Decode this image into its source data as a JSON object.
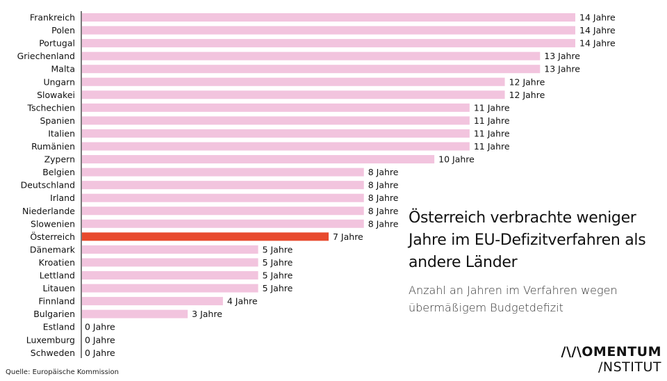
{
  "chart_data": {
    "type": "bar",
    "orientation": "horizontal",
    "title": "Österreich verbrachte weniger Jahre im EU-Defizitverfahren als andere Länder",
    "subtitle": "Anzahl an Jahren im Verfahren wegen übermäßigem  Budgetdefizit",
    "unit_suffix": "Jahre",
    "categories": [
      "Frankreich",
      "Polen",
      "Portugal",
      "Griechenland",
      "Malta",
      "Ungarn",
      "Slowakei",
      "Tschechien",
      "Spanien",
      "Italien",
      "Rumänien",
      "Zypern",
      "Belgien",
      "Deutschland",
      "Irland",
      "Niederlande",
      "Slowenien",
      "Österreich",
      "Dänemark",
      "Kroatien",
      "Lettland",
      "Litauen",
      "Finnland",
      "Bulgarien",
      "Estland",
      "Luxemburg",
      "Schweden"
    ],
    "values": [
      14,
      14,
      14,
      13,
      13,
      12,
      12,
      11,
      11,
      11,
      11,
      10,
      8,
      8,
      8,
      8,
      8,
      7,
      5,
      5,
      5,
      5,
      4,
      3,
      0,
      0,
      0
    ],
    "highlight": "Österreich",
    "colors": {
      "bar": "#f2c4de",
      "highlight": "#e84a2e"
    },
    "xlim": [
      0,
      14
    ],
    "grid": false
  },
  "source": "Quelle: Europäische Kommission",
  "logo": {
    "line1": "/\\/\\OMENTUM",
    "line2": "/NSTITUT"
  }
}
